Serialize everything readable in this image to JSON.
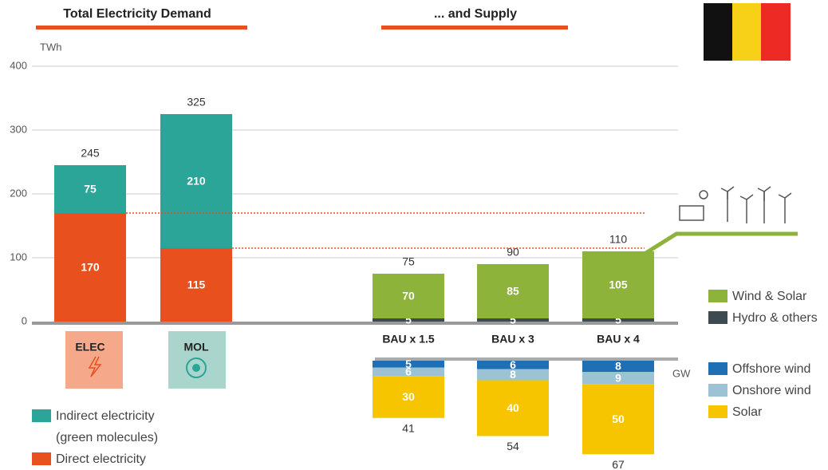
{
  "chart_data": [
    {
      "type": "bar",
      "stacked": true,
      "title": "Total Electricity Demand",
      "y_label": "TWh",
      "ylim": [
        0,
        400
      ],
      "yticks": [
        0,
        100,
        200,
        300,
        400
      ],
      "grid": true,
      "categories": [
        "ELEC",
        "MOL"
      ],
      "series": [
        {
          "name": "Indirect electricity (green molecules)",
          "color": "#2aa597",
          "values": [
            75,
            210
          ]
        },
        {
          "name": "Direct electricity",
          "color": "#e8501e",
          "values": [
            170,
            115
          ]
        }
      ],
      "totals": [
        245,
        325
      ]
    },
    {
      "type": "bar",
      "stacked": true,
      "title": "... and Supply",
      "categories": [
        "BAU x 1.5",
        "BAU x 3",
        "BAU x 4"
      ],
      "series": [
        {
          "name": "Wind & Solar",
          "color": "#8db33a",
          "values": [
            70,
            85,
            105
          ]
        },
        {
          "name": "Hydro & others",
          "color": "#3d4a4f",
          "values": [
            5,
            5,
            5
          ]
        }
      ],
      "totals": [
        75,
        90,
        110
      ]
    },
    {
      "type": "bar",
      "stacked": true,
      "orientation": "down",
      "unit": "GW",
      "series": [
        {
          "name": "Offshore wind",
          "color": "#1f6fb5",
          "values": [
            5,
            6,
            8
          ]
        },
        {
          "name": "Onshore wind",
          "color": "#9cc3d3",
          "values": [
            6,
            8,
            9
          ]
        },
        {
          "name": "Solar",
          "color": "#f6c500",
          "values": [
            30,
            40,
            50
          ]
        }
      ],
      "totals": [
        41,
        54,
        67
      ]
    }
  ]
}
